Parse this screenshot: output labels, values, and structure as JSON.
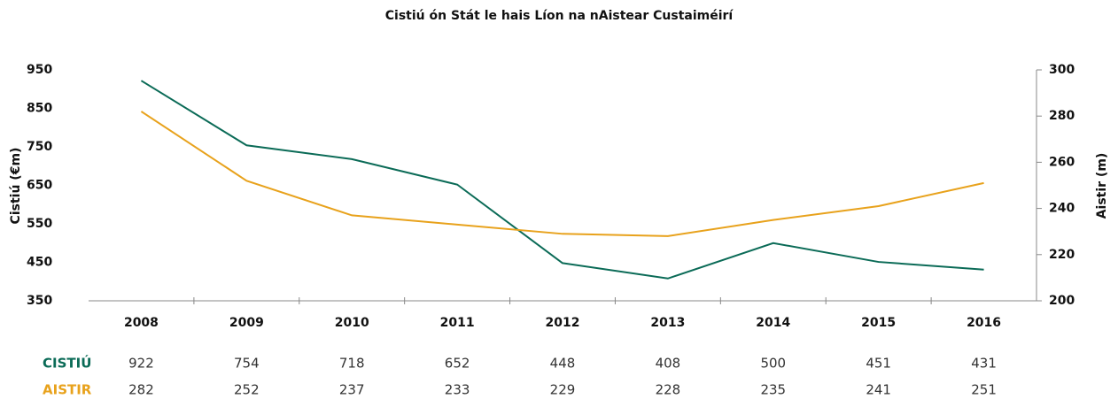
{
  "chart_data": {
    "type": "line",
    "title": "Cistiú ón Stát le hais Líon na nAistear Custaiméirí",
    "y_label": "Cistiú (€m)",
    "y2_label": "Aistir (m)",
    "categories": [
      "2008",
      "2009",
      "2010",
      "2011",
      "2012",
      "2013",
      "2014",
      "2015",
      "2016"
    ],
    "series": [
      {
        "name": "CISTIÚ",
        "color": "#0b6b57",
        "values": [
          922,
          754,
          718,
          652,
          448,
          408,
          500,
          451,
          431
        ]
      },
      {
        "name": "AISTIR",
        "color": "#e8a21c",
        "axis": "y2",
        "values": [
          282,
          252,
          237,
          233,
          229,
          228,
          235,
          241,
          251
        ]
      }
    ],
    "ylim": [
      350,
      950
    ],
    "yticks": [
      350,
      450,
      550,
      650,
      750,
      850,
      950
    ],
    "y2lim": [
      200,
      300
    ],
    "y2ticks": [
      200,
      220,
      240,
      260,
      280,
      300
    ]
  }
}
